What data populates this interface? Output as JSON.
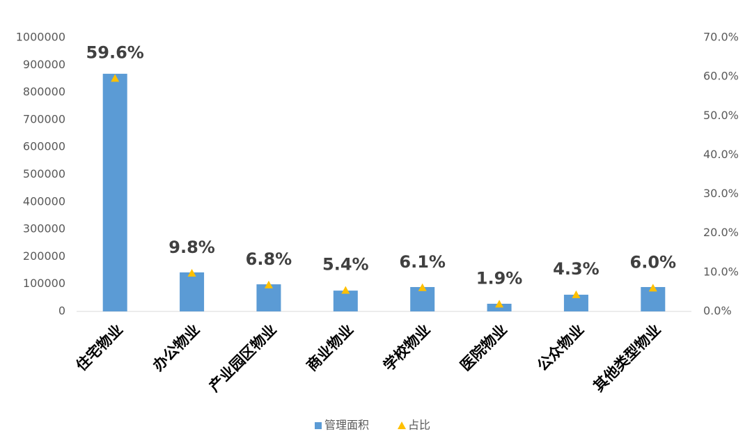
{
  "chart_data": {
    "type": "bar",
    "categories": [
      "住宅物业",
      "办公物业",
      "产业园区物业",
      "商业物业",
      "学校物业",
      "医院物业",
      "公众物业",
      "其他类型物业"
    ],
    "series": [
      {
        "name": "管理面积",
        "color": "#5b9bd5",
        "values": [
          868000,
          142500,
          99000,
          76000,
          89000,
          28000,
          61000,
          89000
        ]
      },
      {
        "name": "占比",
        "color": "#ffc000",
        "axis": "y2",
        "marker": "triangle",
        "values": [
          59.6,
          9.8,
          6.8,
          5.4,
          6.1,
          1.9,
          4.3,
          6.0
        ],
        "value_labels": [
          "59.6%",
          "9.8%",
          "6.8%",
          "5.4%",
          "6.1%",
          "1.9%",
          "4.3%",
          "6.0%"
        ]
      }
    ],
    "ylim": [
      0,
      1000000
    ],
    "yticks": [
      0,
      100000,
      200000,
      300000,
      400000,
      500000,
      600000,
      700000,
      800000,
      900000,
      1000000
    ],
    "y2lim": [
      0,
      70
    ],
    "y2ticks": [
      {
        "value": 0,
        "label": "0.0%"
      },
      {
        "value": 10,
        "label": "10.0%"
      },
      {
        "value": 20,
        "label": "20.0%"
      },
      {
        "value": 30,
        "label": "30.0%"
      },
      {
        "value": 40,
        "label": "40.0%"
      },
      {
        "value": 50,
        "label": "50.0%"
      },
      {
        "value": 60,
        "label": "60.0%"
      },
      {
        "value": 70,
        "label": "70.0%"
      }
    ],
    "grid": false,
    "legend": "bottom"
  }
}
